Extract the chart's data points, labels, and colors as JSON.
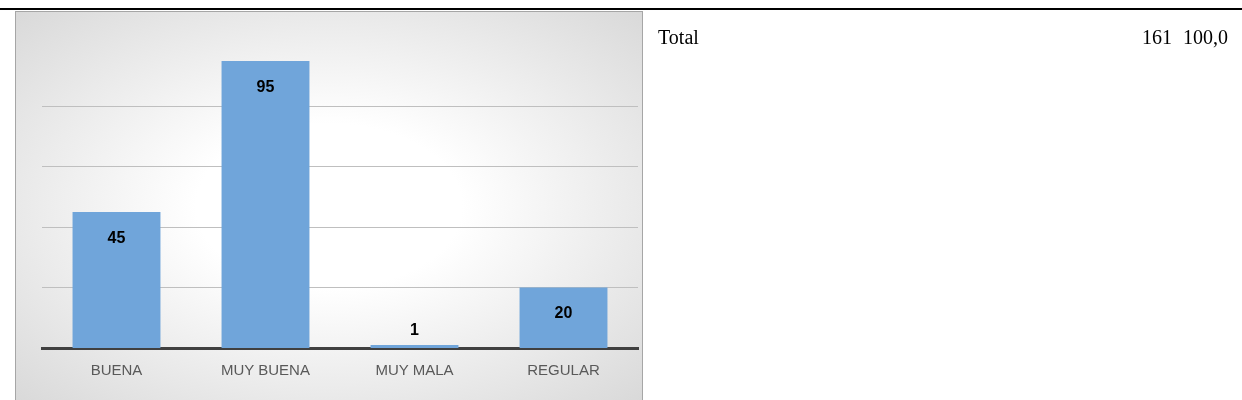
{
  "chart_data": {
    "type": "bar",
    "categories": [
      "BUENA",
      "MUY BUENA",
      "MUY MALA",
      "REGULAR"
    ],
    "values": [
      45,
      95,
      1,
      20
    ],
    "color": "#70a5da",
    "data_labels": true,
    "yticks": [
      {
        "value": 20,
        "label": null
      },
      {
        "value": 40,
        "label": null
      },
      {
        "value": 60,
        "label": null
      },
      {
        "value": 80,
        "label": null
      }
    ],
    "grid": "y",
    "tick_labels": "x",
    "annotations": [
      "Total",
      "161",
      "100,0"
    ]
  }
}
